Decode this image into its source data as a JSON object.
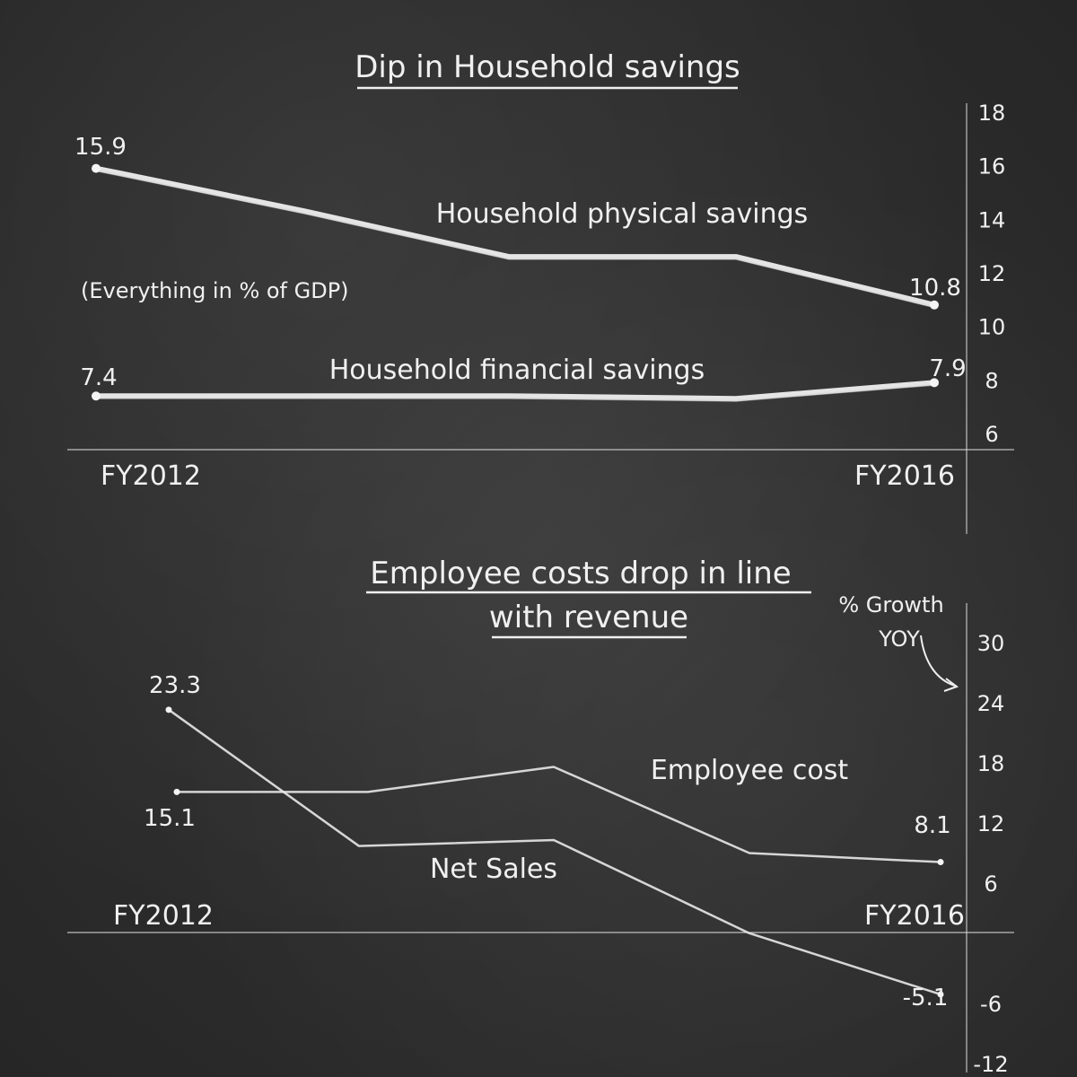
{
  "chart_data": [
    {
      "type": "line",
      "title": "Dip in Household savings",
      "note": "(Everything in % of GDP)",
      "ylim": [
        6,
        18
      ],
      "yticks": [
        6,
        8,
        10,
        12,
        14,
        16,
        18
      ],
      "x_start_label": "FY2012",
      "x_end_label": "FY2016",
      "x": [
        0,
        1,
        2,
        3,
        4
      ],
      "series": [
        {
          "name": "Household physical savings",
          "values": [
            15.9,
            14.3,
            12.6,
            12.6,
            10.8
          ],
          "start_label": "15.9",
          "end_label": "10.8"
        },
        {
          "name": "Household financial savings",
          "values": [
            7.4,
            7.4,
            7.4,
            7.3,
            7.9
          ],
          "start_label": "7.4",
          "end_label": "7.9"
        }
      ]
    },
    {
      "type": "line",
      "title": "Employee costs drop in line with revenue",
      "title_lines": [
        "Employee costs drop in line",
        "with revenue"
      ],
      "ylabel": "% Growth YOY",
      "ylabel_lines": [
        "% Growth",
        "YOY"
      ],
      "ylim": [
        -12,
        30
      ],
      "yticks": [
        -12,
        -6,
        6,
        12,
        18,
        24,
        30
      ],
      "x_start_label": "FY2012",
      "x_end_label": "FY2016",
      "x": [
        0,
        1,
        2,
        3,
        4
      ],
      "series": [
        {
          "name": "Employee cost",
          "values": [
            15.1,
            15.1,
            17.6,
            9.0,
            8.1
          ],
          "start_label": "15.1",
          "end_label": "8.1"
        },
        {
          "name": "Net Sales",
          "values": [
            23.3,
            9.7,
            10.3,
            1.0,
            -5.1
          ],
          "start_label": "23.3",
          "end_label": "-5.1"
        }
      ]
    }
  ]
}
